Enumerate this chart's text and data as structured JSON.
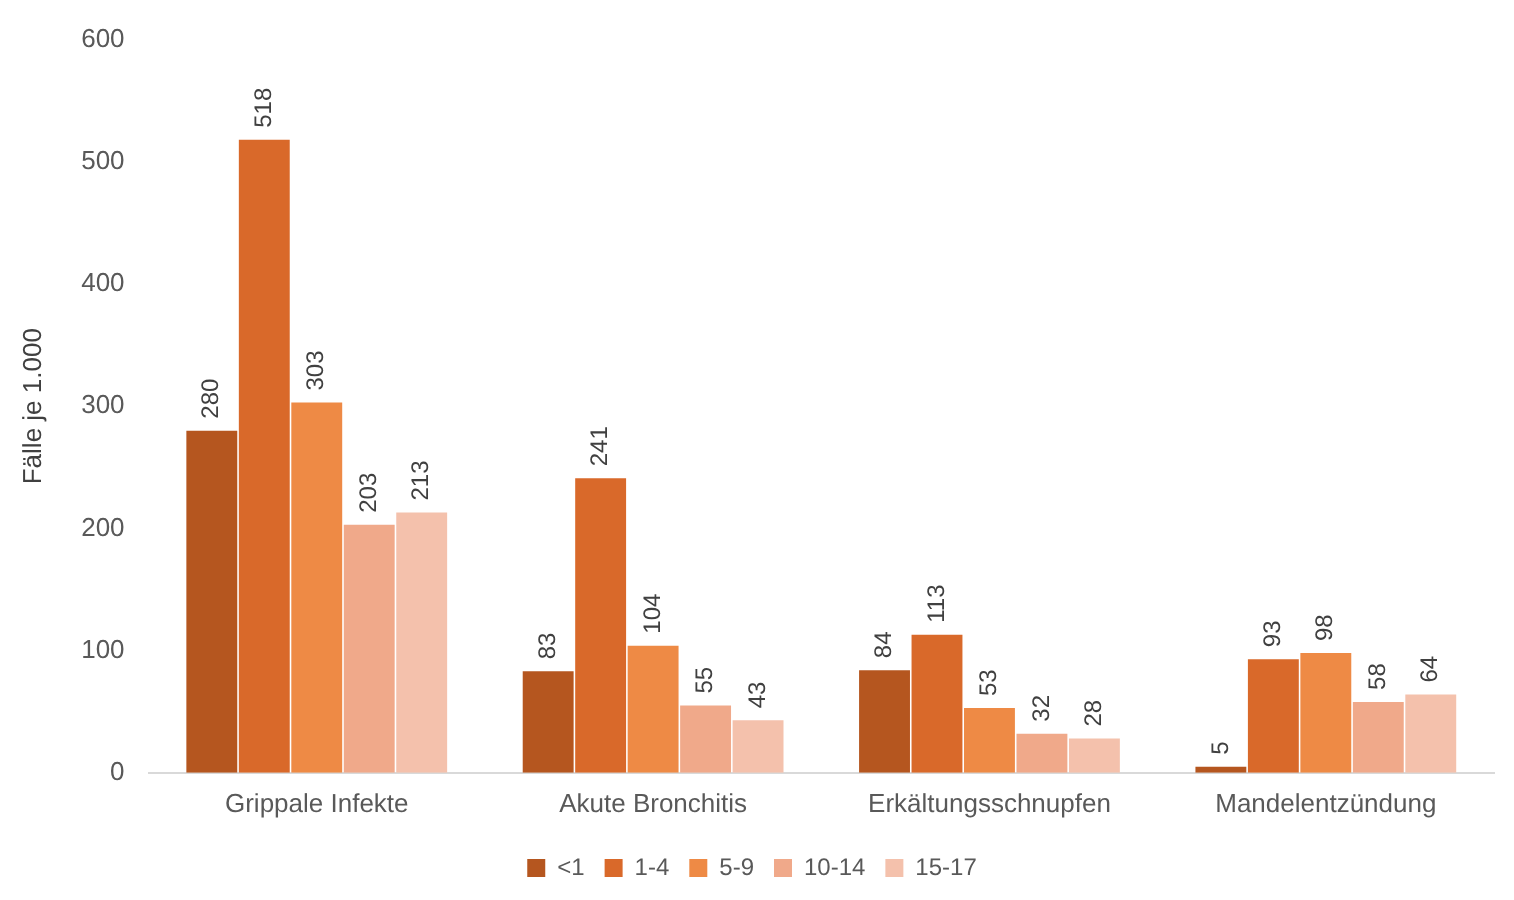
{
  "chart_data": {
    "type": "bar",
    "ylabel": "Fälle je 1.000",
    "categories": [
      "Grippale Infekte",
      "Akute Bronchitis",
      "Erkältungsschnupfen",
      "Mandelentzündung"
    ],
    "series": [
      {
        "name": "<1",
        "color": "#b5561f",
        "values": [
          280,
          83,
          84,
          5
        ]
      },
      {
        "name": "1-4",
        "color": "#d9692a",
        "values": [
          518,
          241,
          113,
          93
        ]
      },
      {
        "name": "5-9",
        "color": "#ee8a45",
        "values": [
          303,
          104,
          53,
          98
        ]
      },
      {
        "name": "10-14",
        "color": "#f0a98a",
        "values": [
          203,
          55,
          32,
          58
        ]
      },
      {
        "name": "15-17",
        "color": "#f4c1ac",
        "values": [
          213,
          43,
          28,
          64
        ]
      }
    ],
    "ylim": [
      0,
      600
    ],
    "yticks": [
      0,
      100,
      200,
      300,
      400,
      500,
      600
    ],
    "grid": false,
    "legend": "bottom",
    "data_labels": true
  }
}
